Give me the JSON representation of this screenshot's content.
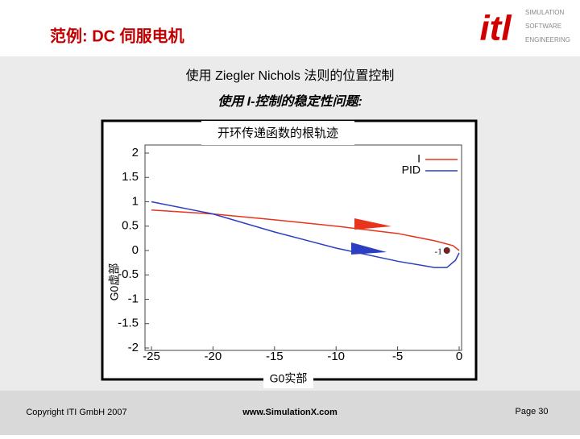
{
  "header": {
    "title": "范例: DC 伺服电机",
    "logo": "itl",
    "logo_lines": [
      "SIMULATION",
      "SOFTWARE",
      "ENGINEERING"
    ]
  },
  "slide": {
    "heading": "使用 Ziegler Nichols 法则的位置控制",
    "subheading": "使用 I-控制的稳定性问题:"
  },
  "chart_data": {
    "type": "line",
    "title": "开环传递函数的根轨迹",
    "x_label": "G0实部",
    "y_label": "G0虚部",
    "xlim": [
      -25,
      0.3
    ],
    "ylim": [
      -2,
      2.2
    ],
    "xticks": [
      -25,
      -20,
      -15,
      -10,
      -5,
      0
    ],
    "yticks": [
      -2,
      -1.5,
      -1,
      -0.5,
      0,
      0.5,
      1,
      1.5,
      2
    ],
    "legend": "upper right",
    "annotation": {
      "x": -1,
      "y": 0,
      "label": "-1"
    },
    "series": [
      {
        "name": "I",
        "color": "#e8341c",
        "x": [
          -25,
          -20,
          -15,
          -10,
          -5,
          -2,
          -0.5,
          0
        ],
        "values": [
          0.83,
          0.75,
          0.63,
          0.5,
          0.35,
          0.2,
          0.1,
          0
        ]
      },
      {
        "name": "PID",
        "color": "#2b3fc0",
        "x": [
          -25,
          -20,
          -15,
          -10,
          -5,
          -2,
          -1,
          -0.3,
          0
        ],
        "values": [
          1,
          0.75,
          0.38,
          0.05,
          -0.22,
          -0.35,
          -0.35,
          -0.2,
          -0.05
        ]
      }
    ]
  },
  "footer": {
    "copyright": "Copyright ITI GmbH 2007",
    "website": "www.SimulationX.com",
    "page": "Page 30"
  }
}
